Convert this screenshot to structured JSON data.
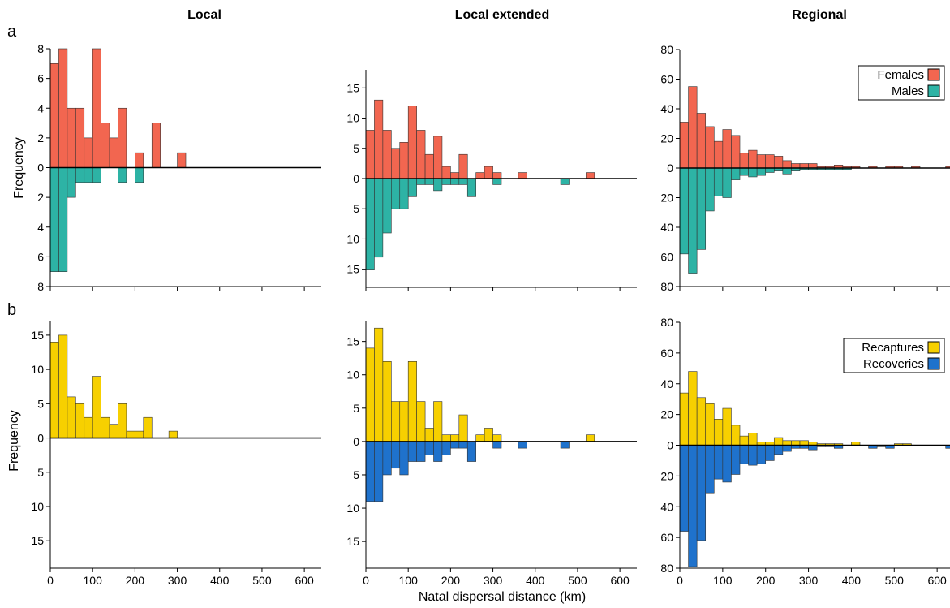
{
  "figure": {
    "columns": [
      "Local",
      "Local extended",
      "Regional"
    ],
    "rows": [
      {
        "label": "a",
        "ylabel": "Frequency"
      },
      {
        "label": "b",
        "ylabel": "Frequency"
      }
    ],
    "xlabel": "Natal dispersal distance (km)"
  },
  "chart_data": [
    {
      "type": "bar",
      "panel": "a-local",
      "row": 0,
      "col": 0,
      "bin_width": 20,
      "x": [
        0,
        20,
        40,
        60,
        80,
        100,
        120,
        140,
        160,
        180,
        200,
        220,
        240,
        260,
        280,
        300
      ],
      "xlim": [
        0,
        640
      ],
      "xticks": [
        0,
        100,
        200,
        300,
        400,
        500,
        600
      ],
      "ylim": [
        -8,
        8
      ],
      "yticks": [
        -8,
        -6,
        -4,
        -2,
        0,
        2,
        4,
        6,
        8
      ],
      "series": [
        {
          "name": "Females",
          "color": "#f26650",
          "direction": "up",
          "values": [
            7,
            8,
            4,
            4,
            2,
            8,
            3,
            2,
            4,
            0,
            1,
            0,
            3,
            0,
            0,
            1
          ]
        },
        {
          "name": "Males",
          "color": "#2db3a5",
          "direction": "down",
          "values": [
            7,
            7,
            2,
            1,
            1,
            1,
            0,
            0,
            1,
            0,
            1,
            0,
            0,
            0,
            0,
            0
          ]
        }
      ],
      "legend": null
    },
    {
      "type": "bar",
      "panel": "a-local-extended",
      "row": 0,
      "col": 1,
      "bin_width": 20,
      "x": [
        0,
        20,
        40,
        60,
        80,
        100,
        120,
        140,
        160,
        180,
        200,
        220,
        240,
        260,
        280,
        300,
        320,
        340,
        360,
        380,
        400,
        420,
        440,
        460,
        480,
        500,
        520,
        540,
        560,
        580,
        600
      ],
      "xlim": [
        0,
        640
      ],
      "xticks": [
        0,
        100,
        200,
        300,
        400,
        500,
        600
      ],
      "ylim": [
        -18,
        18
      ],
      "yticks": [
        -15,
        -10,
        -5,
        0,
        5,
        10,
        15
      ],
      "series": [
        {
          "name": "Females",
          "color": "#f26650",
          "direction": "up",
          "values": [
            8,
            13,
            8,
            5,
            6,
            12,
            8,
            4,
            7,
            2,
            1,
            4,
            0,
            1,
            2,
            1,
            0,
            0,
            1,
            0,
            0,
            0,
            0,
            0,
            0,
            0,
            1,
            0,
            0,
            0,
            0
          ]
        },
        {
          "name": "Males",
          "color": "#2db3a5",
          "direction": "down",
          "values": [
            15,
            13,
            9,
            5,
            5,
            3,
            1,
            1,
            2,
            1,
            1,
            1,
            3,
            0,
            0,
            1,
            0,
            0,
            0,
            0,
            0,
            0,
            0,
            1,
            0,
            0,
            0,
            0,
            0,
            0,
            0
          ]
        }
      ],
      "legend": null
    },
    {
      "type": "bar",
      "panel": "a-regional",
      "row": 0,
      "col": 2,
      "bin_width": 20,
      "x": [
        0,
        20,
        40,
        60,
        80,
        100,
        120,
        140,
        160,
        180,
        200,
        220,
        240,
        260,
        280,
        300,
        320,
        340,
        360,
        380,
        400,
        420,
        440,
        460,
        480,
        500,
        520,
        540,
        560,
        580,
        600,
        620
      ],
      "xlim": [
        0,
        630
      ],
      "xticks": [
        0,
        100,
        200,
        300,
        400,
        500,
        600
      ],
      "ylim": [
        -80,
        80
      ],
      "yticks": [
        -80,
        -60,
        -40,
        -20,
        0,
        20,
        40,
        60,
        80
      ],
      "series": [
        {
          "name": "Females",
          "color": "#f26650",
          "direction": "up",
          "values": [
            31,
            55,
            37,
            28,
            18,
            26,
            22,
            10,
            12,
            9,
            9,
            8,
            5,
            3,
            3,
            3,
            1,
            1,
            2,
            1,
            1,
            0,
            1,
            0,
            1,
            1,
            0,
            1,
            0,
            0,
            0,
            1
          ]
        },
        {
          "name": "Males",
          "color": "#2db3a5",
          "direction": "down",
          "values": [
            58,
            71,
            55,
            29,
            19,
            20,
            8,
            5,
            6,
            5,
            3,
            2,
            4,
            2,
            1,
            1,
            1,
            1,
            1,
            1,
            0,
            0,
            0,
            0,
            0,
            0,
            0,
            0,
            0,
            0,
            0,
            0
          ]
        }
      ],
      "legend": {
        "position": "top-right",
        "entries": [
          "Females",
          "Males"
        ]
      }
    },
    {
      "type": "bar",
      "panel": "b-local",
      "row": 1,
      "col": 0,
      "bin_width": 20,
      "x": [
        0,
        20,
        40,
        60,
        80,
        100,
        120,
        140,
        160,
        180,
        200,
        220,
        240,
        260,
        280
      ],
      "xlim": [
        0,
        640
      ],
      "xticks": [
        0,
        100,
        200,
        300,
        400,
        500,
        600
      ],
      "ylim": [
        -19,
        17
      ],
      "yticks": [
        -15,
        -10,
        -5,
        0,
        5,
        10,
        15
      ],
      "series": [
        {
          "name": "Recaptures",
          "color": "#f7d000",
          "direction": "up",
          "values": [
            14,
            15,
            6,
            5,
            3,
            9,
            3,
            2,
            5,
            1,
            1,
            3,
            0,
            0,
            1
          ]
        },
        {
          "name": "Recoveries",
          "color": "#1f72cc",
          "direction": "down",
          "values": [
            0,
            0,
            0,
            0,
            0,
            0,
            0,
            0,
            0,
            0,
            0,
            0,
            0,
            0,
            0
          ]
        }
      ],
      "legend": null
    },
    {
      "type": "bar",
      "panel": "b-local-extended",
      "row": 1,
      "col": 1,
      "bin_width": 20,
      "x": [
        0,
        20,
        40,
        60,
        80,
        100,
        120,
        140,
        160,
        180,
        200,
        220,
        240,
        260,
        280,
        300,
        320,
        340,
        360,
        380,
        400,
        420,
        440,
        460,
        480,
        500,
        520,
        540,
        560,
        580,
        600
      ],
      "xlim": [
        0,
        640
      ],
      "xticks": [
        0,
        100,
        200,
        300,
        400,
        500,
        600
      ],
      "ylim": [
        -19,
        18
      ],
      "yticks": [
        -15,
        -10,
        -5,
        0,
        5,
        10,
        15
      ],
      "series": [
        {
          "name": "Recaptures",
          "color": "#f7d000",
          "direction": "up",
          "values": [
            14,
            17,
            12,
            6,
            6,
            12,
            6,
            2,
            6,
            1,
            1,
            4,
            0,
            1,
            2,
            1,
            0,
            0,
            0,
            0,
            0,
            0,
            0,
            0,
            0,
            0,
            1,
            0,
            0,
            0,
            0
          ]
        },
        {
          "name": "Recoveries",
          "color": "#1f72cc",
          "direction": "down",
          "values": [
            9,
            9,
            5,
            4,
            5,
            3,
            3,
            2,
            3,
            2,
            1,
            1,
            3,
            0,
            0,
            1,
            0,
            0,
            1,
            0,
            0,
            0,
            0,
            1,
            0,
            0,
            0,
            0,
            0,
            0,
            0
          ]
        }
      ],
      "legend": null
    },
    {
      "type": "bar",
      "panel": "b-regional",
      "row": 1,
      "col": 2,
      "bin_width": 20,
      "x": [
        0,
        20,
        40,
        60,
        80,
        100,
        120,
        140,
        160,
        180,
        200,
        220,
        240,
        260,
        280,
        300,
        320,
        340,
        360,
        380,
        400,
        420,
        440,
        460,
        480,
        500,
        520,
        540,
        560,
        580,
        600,
        620
      ],
      "xlim": [
        0,
        630
      ],
      "xticks": [
        0,
        100,
        200,
        300,
        400,
        500,
        600
      ],
      "ylim": [
        -80,
        80
      ],
      "yticks": [
        -80,
        -60,
        -40,
        -20,
        0,
        20,
        40,
        60,
        80
      ],
      "series": [
        {
          "name": "Recaptures",
          "color": "#f7d000",
          "direction": "up",
          "values": [
            34,
            48,
            31,
            27,
            17,
            24,
            13,
            6,
            8,
            2,
            2,
            5,
            3,
            3,
            3,
            2,
            1,
            1,
            1,
            0,
            2,
            0,
            0,
            0,
            0,
            1,
            1,
            0,
            0,
            0,
            0,
            0
          ]
        },
        {
          "name": "Recoveries",
          "color": "#1f72cc",
          "direction": "down",
          "values": [
            56,
            79,
            62,
            31,
            22,
            24,
            19,
            12,
            13,
            12,
            10,
            6,
            4,
            2,
            2,
            3,
            1,
            1,
            2,
            0,
            0,
            0,
            2,
            1,
            2,
            0,
            0,
            0,
            0,
            0,
            0,
            2
          ]
        }
      ],
      "legend": {
        "position": "top-right",
        "entries": [
          "Recaptures",
          "Recoveries"
        ]
      }
    }
  ]
}
